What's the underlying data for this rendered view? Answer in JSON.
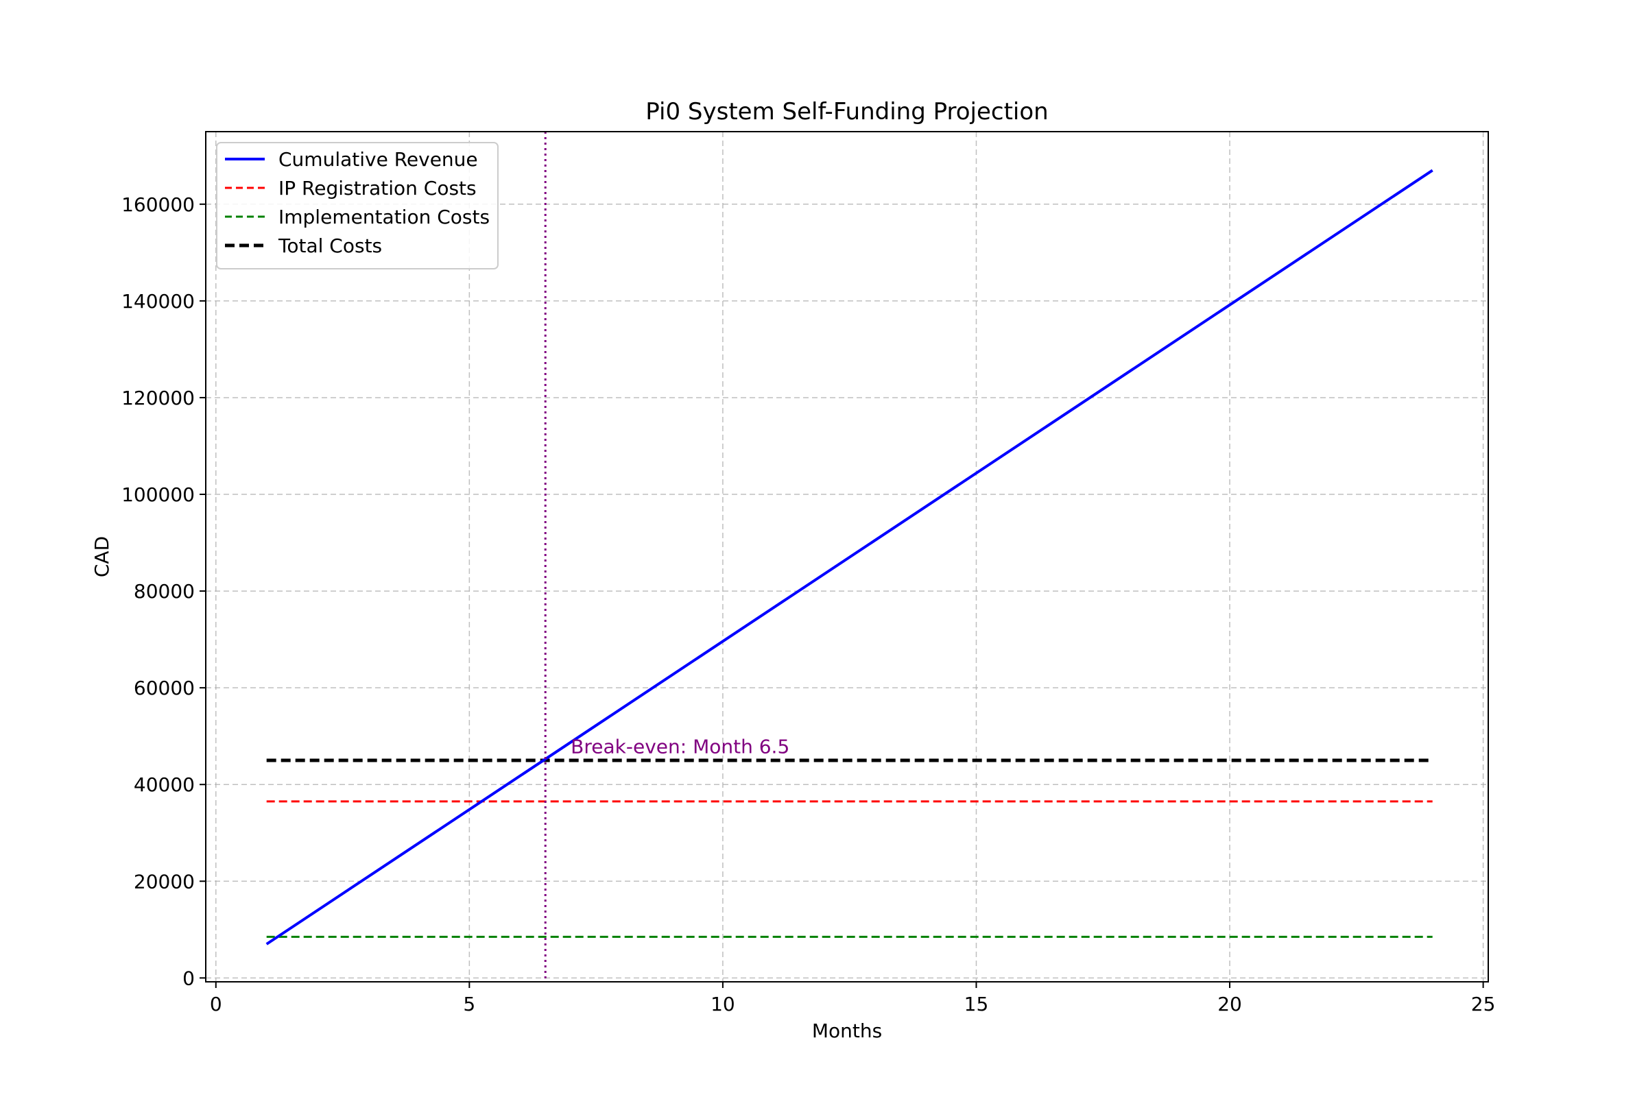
{
  "chart_data": {
    "type": "line",
    "title": "Pi0 System Self-Funding Projection",
    "xlabel": "Months",
    "ylabel": "CAD",
    "xlim": [
      -0.2,
      25.1
    ],
    "ylim": [
      -800,
      175000
    ],
    "xticks": [
      0,
      5,
      10,
      15,
      20,
      25
    ],
    "yticks": [
      0,
      20000,
      40000,
      60000,
      80000,
      100000,
      120000,
      140000,
      160000
    ],
    "grid": true,
    "legend_position": "upper-left",
    "series": [
      {
        "name": "Cumulative Revenue",
        "color": "#0000ff",
        "style": "solid",
        "x": [
          1,
          24
        ],
        "y": [
          7000,
          167000
        ]
      },
      {
        "name": "IP Registration Costs",
        "color": "#ff0000",
        "style": "dashed",
        "x": [
          1,
          24
        ],
        "y": [
          36500,
          36500
        ]
      },
      {
        "name": "Implementation Costs",
        "color": "#008000",
        "style": "dashed",
        "x": [
          1,
          24
        ],
        "y": [
          8500,
          8500
        ]
      },
      {
        "name": "Total Costs",
        "color": "#000000",
        "style": "dashed-bold",
        "x": [
          1,
          24
        ],
        "y": [
          45000,
          45000
        ]
      }
    ],
    "vline": {
      "x": 6.5,
      "color": "#800080",
      "style": "dotted"
    },
    "annotation": {
      "text": "Break-even: Month 6.5",
      "x": 7.0,
      "y": 46500,
      "color": "#800080"
    }
  }
}
